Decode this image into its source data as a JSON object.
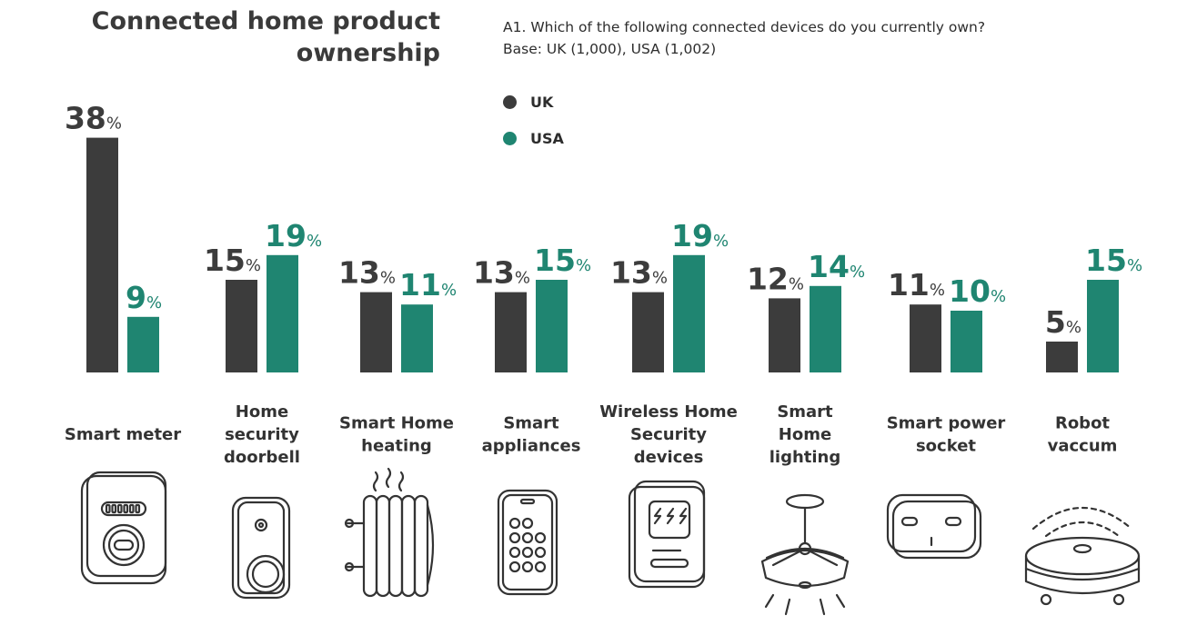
{
  "title_line1": "Connected home product",
  "title_line2": "ownership",
  "question_line1": "A1. Which of the following connected devices do you currently own?",
  "question_line2": "Base: UK (1,000), USA (1,002)",
  "colors": {
    "uk": "#3c3c3c",
    "usa": "#1f8571",
    "icon_stroke": "#333333"
  },
  "chart_data": {
    "type": "bar",
    "unit": "%",
    "categories": [
      "Smart meter",
      "Home security doorbell",
      "Smart Home heating",
      "Smart appliances",
      "Wireless Home Security devices",
      "Smart Home lighting",
      "Smart power socket",
      "Robot vaccum"
    ],
    "category_lines": [
      [
        "Smart meter"
      ],
      [
        "Home",
        "security",
        "doorbell"
      ],
      [
        "Smart Home",
        "heating"
      ],
      [
        "Smart",
        "appliances"
      ],
      [
        "Wireless Home",
        "Security",
        "devices"
      ],
      [
        "Smart",
        "Home",
        "lighting"
      ],
      [
        "Smart power",
        "socket"
      ],
      [
        "Robot",
        "vaccum"
      ]
    ],
    "series": [
      {
        "name": "UK",
        "values": [
          38,
          15,
          13,
          13,
          13,
          12,
          11,
          5
        ]
      },
      {
        "name": "USA",
        "values": [
          9,
          19,
          11,
          15,
          19,
          14,
          10,
          15
        ]
      }
    ],
    "legend_position": "top",
    "grid": false,
    "icons": [
      "smart-meter-icon",
      "doorbell-icon",
      "radiator-icon",
      "phone-icon",
      "security-panel-icon",
      "ceiling-lamp-icon",
      "power-socket-icon",
      "robot-vacuum-icon"
    ]
  }
}
